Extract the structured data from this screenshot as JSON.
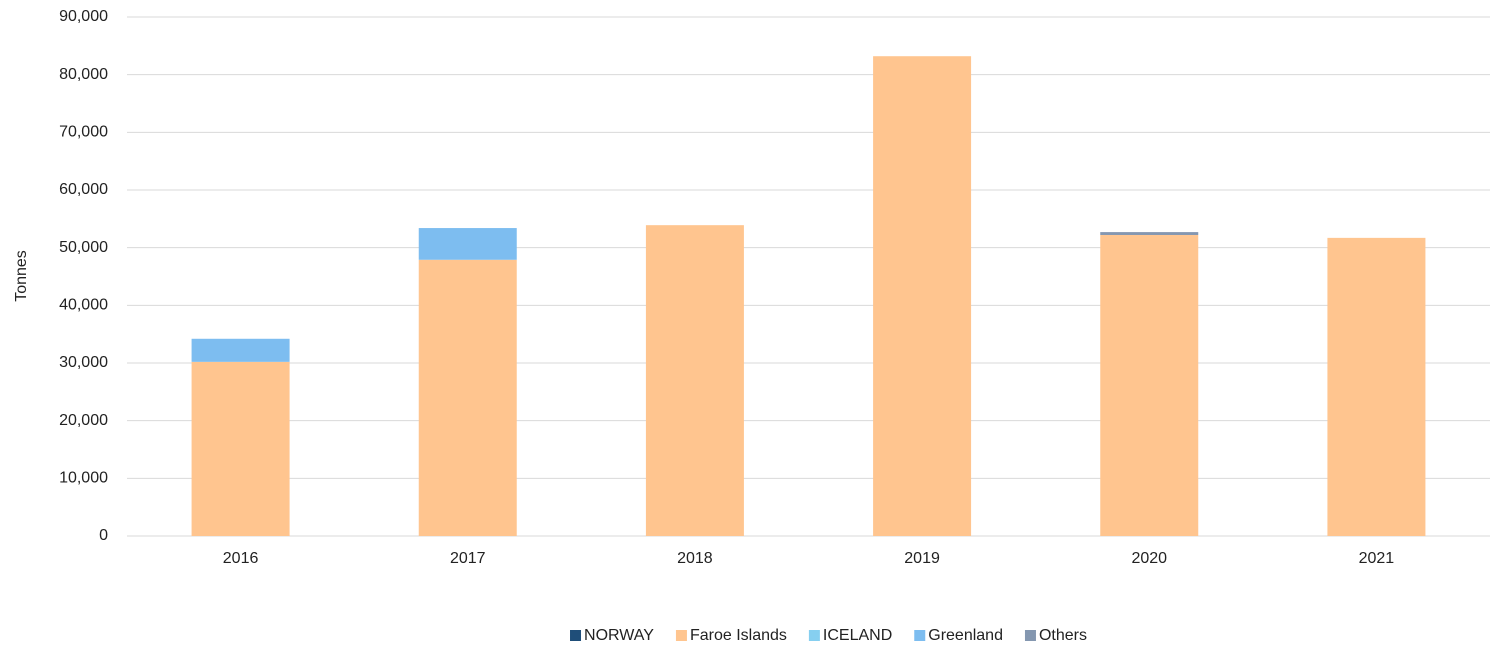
{
  "chart_data": {
    "type": "stacked_bar",
    "y_label": "Tonnes",
    "categories": [
      "2016",
      "2017",
      "2018",
      "2019",
      "2020",
      "2021"
    ],
    "series": [
      {
        "name": "NORWAY",
        "color": "#1f4e79",
        "values": [
          0,
          0,
          0,
          0,
          0,
          0
        ]
      },
      {
        "name": "Faroe Islands",
        "color": "#ffc58f",
        "values": [
          30200,
          47900,
          53900,
          83200,
          52200,
          51700
        ]
      },
      {
        "name": "ICELAND",
        "color": "#86cff0",
        "values": [
          0,
          0,
          0,
          0,
          0,
          0
        ]
      },
      {
        "name": "Greenland",
        "color": "#7dbdf0",
        "values": [
          4000,
          5500,
          0,
          0,
          0,
          0
        ]
      },
      {
        "name": "Others",
        "color": "#8497b0",
        "values": [
          0,
          0,
          0,
          0,
          500,
          0
        ]
      }
    ],
    "ylim": [
      0,
      90000
    ],
    "yticks": [
      0,
      {
        "value": 10000,
        "label": "10,000"
      },
      {
        "value": 20000,
        "label": "20,000"
      },
      {
        "value": 30000,
        "label": "30,000"
      },
      {
        "value": 40000,
        "label": "40,000"
      },
      {
        "value": 50000,
        "label": "50,000"
      },
      {
        "value": 60000,
        "label": "60,000"
      },
      {
        "value": 70000,
        "label": "70,000"
      },
      {
        "value": 80000,
        "label": "80,000"
      },
      {
        "value": 90000,
        "label": "90,000"
      }
    ],
    "grid": true,
    "legend": "bottom"
  }
}
